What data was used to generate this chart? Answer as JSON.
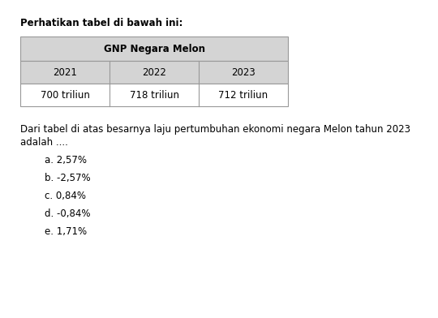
{
  "header_text": "Perhatikan tabel di bawah ini:",
  "table_title": "GNP Negara Melon",
  "col_headers": [
    "2021",
    "2022",
    "2023"
  ],
  "col_values": [
    "700 triliun",
    "718 triliun",
    "712 triliun"
  ],
  "question_line1": "Dari tabel di atas besarnya laju pertumbuhan ekonomi negara Melon tahun 2023",
  "question_line2": "adalah ....",
  "options": [
    "a. 2,57%",
    "b. -2,57%",
    "c. 0,84%",
    "d. -0,84%",
    "e. 1,71%"
  ],
  "bg_color": "#ffffff",
  "table_header_bg": "#d4d4d4",
  "table_row_bg": "#ffffff",
  "table_border_color": "#999999",
  "text_color": "#000000",
  "fig_width": 5.4,
  "fig_height": 3.92,
  "dpi": 100
}
